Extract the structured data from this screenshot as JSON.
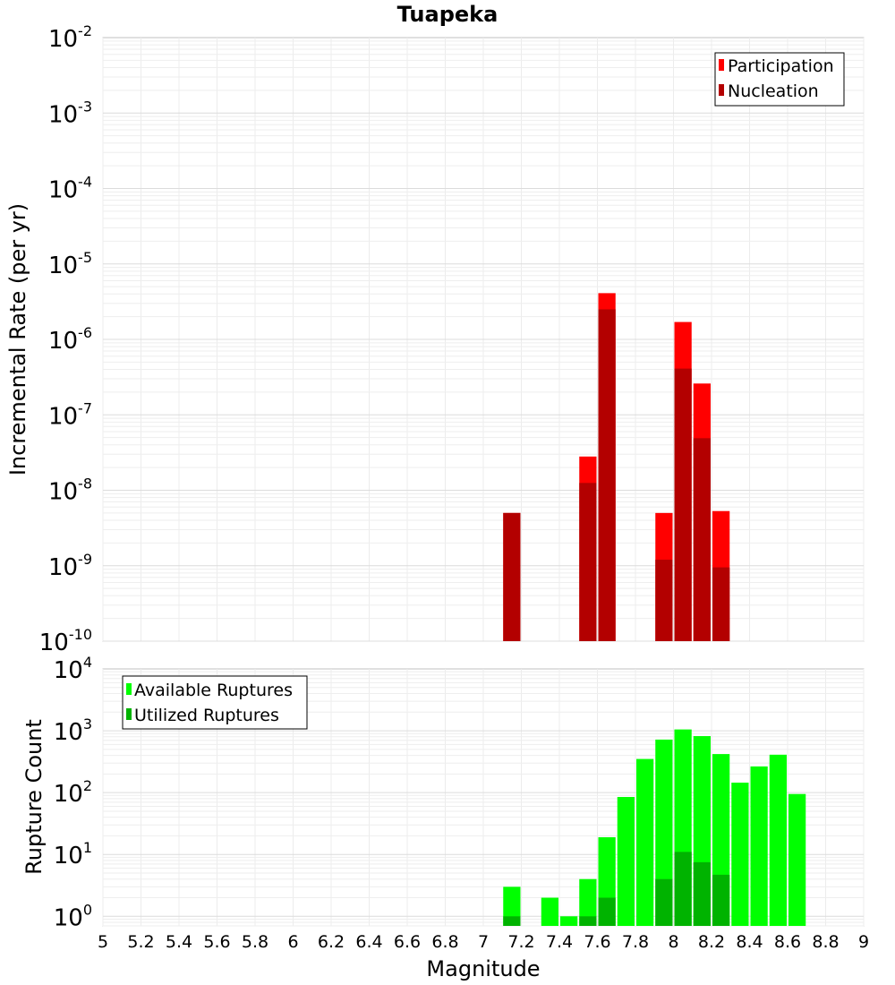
{
  "chart_data": [
    {
      "type": "bar",
      "title": "Tuapeka",
      "xlabel": "",
      "ylabel": "Incremental Rate (per yr)",
      "yscale": "log",
      "xlim": [
        5,
        9
      ],
      "ylim": [
        1e-10,
        0.01
      ],
      "ytick_labels": [
        {
          "base": "10",
          "exp": "-10"
        },
        {
          "base": "10",
          "exp": "-9"
        },
        {
          "base": "10",
          "exp": "-8"
        },
        {
          "base": "10",
          "exp": "-7"
        },
        {
          "base": "10",
          "exp": "-6"
        },
        {
          "base": "10",
          "exp": "-5"
        },
        {
          "base": "10",
          "exp": "-4"
        },
        {
          "base": "10",
          "exp": "-3"
        },
        {
          "base": "10",
          "exp": "-2"
        }
      ],
      "grid": true,
      "legend_position": "top-right",
      "series": [
        {
          "name": "Participation",
          "color": "#ff0000",
          "points": [
            {
              "x": 7.15,
              "y": 5e-09
            },
            {
              "x": 7.55,
              "y": 2.8e-08
            },
            {
              "x": 7.65,
              "y": 4.1e-06
            },
            {
              "x": 7.95,
              "y": 5e-09
            },
            {
              "x": 8.05,
              "y": 1.7e-06
            },
            {
              "x": 8.15,
              "y": 2.6e-07
            },
            {
              "x": 8.25,
              "y": 5.3e-09
            }
          ]
        },
        {
          "name": "Nucleation",
          "color": "#b30000",
          "points": [
            {
              "x": 7.15,
              "y": 5e-09
            },
            {
              "x": 7.55,
              "y": 1.25e-08
            },
            {
              "x": 7.65,
              "y": 2.5e-06
            },
            {
              "x": 7.95,
              "y": 1.2e-09
            },
            {
              "x": 8.05,
              "y": 4.1e-07
            },
            {
              "x": 8.15,
              "y": 4.9e-08
            },
            {
              "x": 8.25,
              "y": 9.5e-10
            }
          ]
        }
      ]
    },
    {
      "type": "bar",
      "title": "",
      "xlabel": "Magnitude",
      "ylabel": "Rupture Count",
      "yscale": "log",
      "xlim": [
        5,
        9
      ],
      "ylim": [
        0.7,
        10000
      ],
      "ytick_labels": [
        {
          "base": "10",
          "exp": "0"
        },
        {
          "base": "10",
          "exp": "1"
        },
        {
          "base": "10",
          "exp": "2"
        },
        {
          "base": "10",
          "exp": "3"
        },
        {
          "base": "10",
          "exp": "4"
        }
      ],
      "xtick_labels": [
        "5",
        "5.2",
        "5.4",
        "5.6",
        "5.8",
        "6",
        "6.2",
        "6.4",
        "6.6",
        "6.8",
        "7",
        "7.2",
        "7.4",
        "7.6",
        "7.8",
        "8",
        "8.2",
        "8.4",
        "8.6",
        "8.8",
        "9"
      ],
      "grid": true,
      "legend_position": "top-left",
      "series": [
        {
          "name": "Available Ruptures",
          "color": "#00ff00",
          "points": [
            {
              "x": 7.15,
              "y": 3
            },
            {
              "x": 7.35,
              "y": 2
            },
            {
              "x": 7.45,
              "y": 1
            },
            {
              "x": 7.55,
              "y": 4
            },
            {
              "x": 7.65,
              "y": 19
            },
            {
              "x": 7.75,
              "y": 85
            },
            {
              "x": 7.85,
              "y": 350
            },
            {
              "x": 7.95,
              "y": 720
            },
            {
              "x": 8.05,
              "y": 1050
            },
            {
              "x": 8.15,
              "y": 820
            },
            {
              "x": 8.25,
              "y": 420
            },
            {
              "x": 8.35,
              "y": 145
            },
            {
              "x": 8.45,
              "y": 265
            },
            {
              "x": 8.55,
              "y": 410
            },
            {
              "x": 8.65,
              "y": 95
            }
          ]
        },
        {
          "name": "Utilized Ruptures",
          "color": "#00b300",
          "points": [
            {
              "x": 7.15,
              "y": 1
            },
            {
              "x": 7.55,
              "y": 1
            },
            {
              "x": 7.65,
              "y": 2
            },
            {
              "x": 7.95,
              "y": 4
            },
            {
              "x": 8.05,
              "y": 11
            },
            {
              "x": 8.15,
              "y": 7.5
            },
            {
              "x": 8.25,
              "y": 4.7
            }
          ]
        }
      ]
    }
  ]
}
